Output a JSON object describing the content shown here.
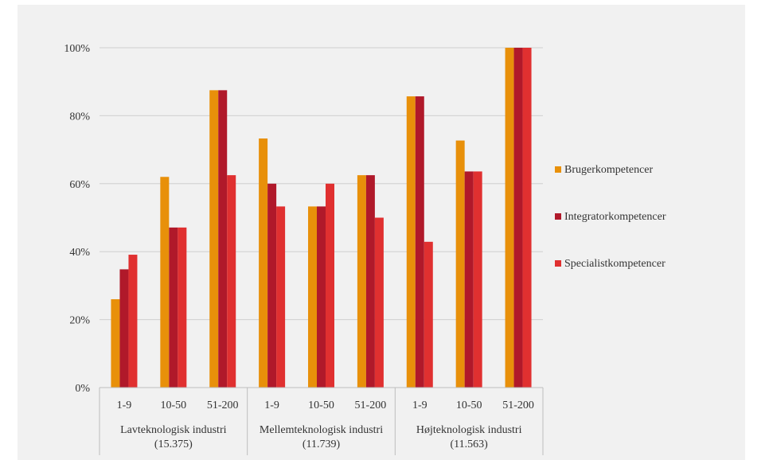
{
  "chart_data": {
    "type": "bar",
    "ylim": [
      0,
      100
    ],
    "y_ticks": [
      "0%",
      "20%",
      "40%",
      "60%",
      "80%",
      "100%"
    ],
    "grid": true,
    "legend_position": "right",
    "groups": [
      {
        "label_line1": "Lavteknologisk industri",
        "label_line2": "(15.375)",
        "categories": [
          "1-9",
          "10-50",
          "51-200"
        ]
      },
      {
        "label_line1": "Mellemteknologisk industri",
        "label_line2": "(11.739)",
        "categories": [
          "1-9",
          "10-50",
          "51-200"
        ]
      },
      {
        "label_line1": "Højteknologisk industri",
        "label_line2": "(11.563)",
        "categories": [
          "1-9",
          "10-50",
          "51-200"
        ]
      }
    ],
    "series": [
      {
        "name": "Brugerkompetencer",
        "color": "#e8900a",
        "values": [
          26,
          62,
          87.5,
          73.3,
          53.3,
          62.5,
          85.7,
          72.7,
          100
        ]
      },
      {
        "name": "Integratorkompetencer",
        "color": "#b0192a",
        "values": [
          34.8,
          47.1,
          87.5,
          60,
          53.3,
          62.5,
          85.7,
          63.6,
          100
        ]
      },
      {
        "name": "Specialistkompetencer",
        "color": "#e03030",
        "values": [
          39.1,
          47.1,
          62.5,
          53.3,
          60,
          50,
          42.9,
          63.6,
          100
        ]
      }
    ]
  }
}
